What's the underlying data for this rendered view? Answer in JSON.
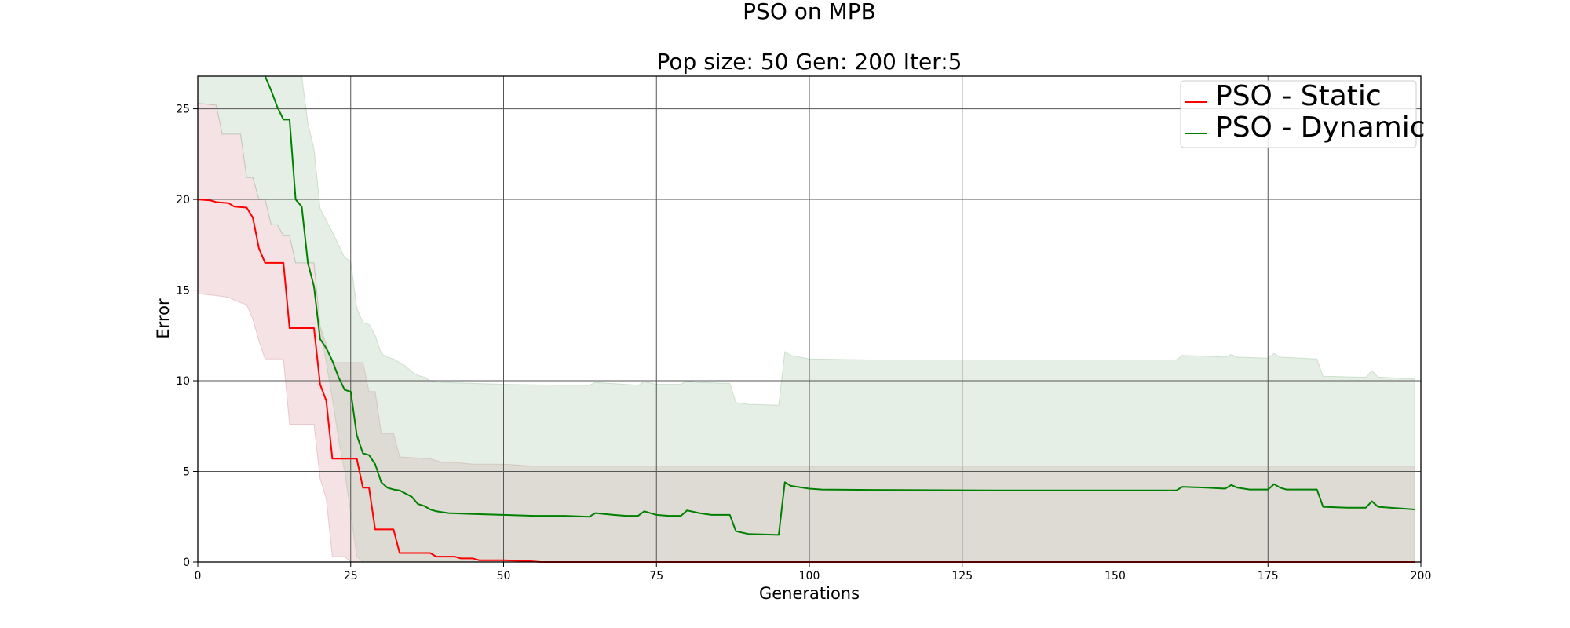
{
  "chart_data": {
    "type": "line",
    "title": "PSO on MPB",
    "subtitle": "Pop size: 50  Gen: 200  Iter:5",
    "xlabel": "Generations",
    "ylabel": "Error",
    "xlim": [
      0,
      200
    ],
    "ylim": [
      0,
      26.8
    ],
    "x_ticks": [
      0,
      25,
      50,
      75,
      100,
      125,
      150,
      175,
      200
    ],
    "y_ticks": [
      0,
      5,
      10,
      15,
      20,
      25
    ],
    "grid": true,
    "legend_position": "top-right",
    "series": [
      {
        "name": "PSO - Static",
        "color": "#ff0000",
        "band_color": "#d9a0a8",
        "mean": [
          [
            0,
            20.0
          ],
          [
            2,
            19.95
          ],
          [
            3,
            19.85
          ],
          [
            5,
            19.8
          ],
          [
            6,
            19.6
          ],
          [
            8,
            19.55
          ],
          [
            9,
            19.0
          ],
          [
            10,
            17.3
          ],
          [
            11,
            16.5
          ],
          [
            14,
            16.5
          ],
          [
            15,
            12.9
          ],
          [
            19,
            12.9
          ],
          [
            20,
            9.8
          ],
          [
            21,
            8.9
          ],
          [
            22,
            5.7
          ],
          [
            26,
            5.7
          ],
          [
            27,
            4.1
          ],
          [
            28,
            4.1
          ],
          [
            29,
            1.8
          ],
          [
            32,
            1.8
          ],
          [
            33,
            0.5
          ],
          [
            38,
            0.5
          ],
          [
            39,
            0.3
          ],
          [
            42,
            0.3
          ],
          [
            43,
            0.2
          ],
          [
            45,
            0.2
          ],
          [
            46,
            0.1
          ],
          [
            50,
            0.1
          ],
          [
            54,
            0.05
          ],
          [
            56,
            0.0
          ],
          [
            199,
            0.0
          ]
        ],
        "upper": [
          [
            0,
            25.3
          ],
          [
            3,
            25.2
          ],
          [
            4,
            23.6
          ],
          [
            7,
            23.6
          ],
          [
            8,
            21.2
          ],
          [
            9,
            21.2
          ],
          [
            10,
            20.0
          ],
          [
            11,
            20.0
          ],
          [
            12,
            18.6
          ],
          [
            13,
            18.6
          ],
          [
            14,
            18.0
          ],
          [
            15,
            18.0
          ],
          [
            16,
            16.5
          ],
          [
            19,
            16.5
          ],
          [
            20,
            13.0
          ],
          [
            22,
            11.0
          ],
          [
            27,
            11.0
          ],
          [
            28,
            9.4
          ],
          [
            29,
            9.4
          ],
          [
            30,
            7.1
          ],
          [
            32,
            7.1
          ],
          [
            33,
            5.8
          ],
          [
            38,
            5.7
          ],
          [
            40,
            5.5
          ],
          [
            42,
            5.5
          ],
          [
            45,
            5.4
          ],
          [
            50,
            5.4
          ],
          [
            55,
            5.3
          ],
          [
            199,
            5.3
          ]
        ],
        "lower": [
          [
            0,
            14.8
          ],
          [
            3,
            14.7
          ],
          [
            5,
            14.6
          ],
          [
            7,
            14.3
          ],
          [
            8,
            14.2
          ],
          [
            9,
            13.4
          ],
          [
            10,
            12.2
          ],
          [
            11,
            11.2
          ],
          [
            14,
            11.2
          ],
          [
            15,
            7.6
          ],
          [
            19,
            7.6
          ],
          [
            20,
            4.6
          ],
          [
            21,
            3.5
          ],
          [
            22,
            0.3
          ],
          [
            24,
            0.3
          ],
          [
            25,
            0.0
          ],
          [
            199,
            0.0
          ]
        ]
      },
      {
        "name": "PSO - Dynamic",
        "color": "#008000",
        "band_color": "#a8caa8",
        "mean": [
          [
            11,
            26.8
          ],
          [
            12,
            26.0
          ],
          [
            13,
            25.1
          ],
          [
            14,
            24.4
          ],
          [
            15,
            24.4
          ],
          [
            16,
            20.0
          ],
          [
            17,
            19.6
          ],
          [
            18,
            16.5
          ],
          [
            19,
            15.2
          ],
          [
            20,
            12.3
          ],
          [
            21,
            11.8
          ],
          [
            22,
            11.1
          ],
          [
            23,
            10.2
          ],
          [
            24,
            9.5
          ],
          [
            25,
            9.4
          ],
          [
            26,
            7.0
          ],
          [
            27,
            6.0
          ],
          [
            28,
            5.9
          ],
          [
            29,
            5.4
          ],
          [
            30,
            4.4
          ],
          [
            31,
            4.1
          ],
          [
            32,
            4.0
          ],
          [
            33,
            3.95
          ],
          [
            35,
            3.6
          ],
          [
            36,
            3.2
          ],
          [
            37,
            3.1
          ],
          [
            38,
            2.9
          ],
          [
            39,
            2.8
          ],
          [
            40,
            2.75
          ],
          [
            41,
            2.7
          ],
          [
            45,
            2.65
          ],
          [
            50,
            2.6
          ],
          [
            55,
            2.55
          ],
          [
            60,
            2.55
          ],
          [
            64,
            2.5
          ],
          [
            65,
            2.7
          ],
          [
            68,
            2.6
          ],
          [
            70,
            2.55
          ],
          [
            72,
            2.55
          ],
          [
            73,
            2.8
          ],
          [
            75,
            2.6
          ],
          [
            77,
            2.55
          ],
          [
            79,
            2.55
          ],
          [
            80,
            2.85
          ],
          [
            82,
            2.7
          ],
          [
            84,
            2.6
          ],
          [
            87,
            2.6
          ],
          [
            88,
            1.7
          ],
          [
            90,
            1.55
          ],
          [
            95,
            1.5
          ],
          [
            96,
            4.4
          ],
          [
            97,
            4.2
          ],
          [
            100,
            4.05
          ],
          [
            102,
            4.0
          ],
          [
            110,
            3.98
          ],
          [
            130,
            3.95
          ],
          [
            150,
            3.95
          ],
          [
            160,
            3.95
          ],
          [
            161,
            4.15
          ],
          [
            165,
            4.1
          ],
          [
            168,
            4.05
          ],
          [
            169,
            4.25
          ],
          [
            170,
            4.1
          ],
          [
            172,
            4.0
          ],
          [
            175,
            4.0
          ],
          [
            176,
            4.3
          ],
          [
            177,
            4.1
          ],
          [
            178,
            4.0
          ],
          [
            183,
            4.0
          ],
          [
            184,
            3.05
          ],
          [
            188,
            3.0
          ],
          [
            191,
            3.0
          ],
          [
            192,
            3.35
          ],
          [
            193,
            3.05
          ],
          [
            197,
            2.95
          ],
          [
            199,
            2.9
          ]
        ],
        "upper": [
          [
            0,
            26.8
          ],
          [
            17,
            26.8
          ],
          [
            18,
            24.2
          ],
          [
            19,
            22.8
          ],
          [
            20,
            19.5
          ],
          [
            22,
            18.2
          ],
          [
            23,
            17.5
          ],
          [
            24,
            16.8
          ],
          [
            25,
            16.6
          ],
          [
            26,
            14.0
          ],
          [
            27,
            13.2
          ],
          [
            28,
            13.1
          ],
          [
            29,
            12.5
          ],
          [
            30,
            11.5
          ],
          [
            31,
            11.3
          ],
          [
            32,
            11.2
          ],
          [
            34,
            10.8
          ],
          [
            35,
            10.5
          ],
          [
            36,
            10.3
          ],
          [
            37,
            10.2
          ],
          [
            38,
            10.0
          ],
          [
            40,
            9.9
          ],
          [
            50,
            9.8
          ],
          [
            60,
            9.75
          ],
          [
            64,
            9.75
          ],
          [
            65,
            9.9
          ],
          [
            70,
            9.8
          ],
          [
            72,
            9.75
          ],
          [
            73,
            9.95
          ],
          [
            75,
            9.8
          ],
          [
            79,
            9.8
          ],
          [
            80,
            10.0
          ],
          [
            82,
            9.9
          ],
          [
            87,
            9.85
          ],
          [
            88,
            8.8
          ],
          [
            90,
            8.7
          ],
          [
            95,
            8.65
          ],
          [
            96,
            11.6
          ],
          [
            97,
            11.4
          ],
          [
            100,
            11.2
          ],
          [
            110,
            11.15
          ],
          [
            150,
            11.15
          ],
          [
            160,
            11.15
          ],
          [
            161,
            11.4
          ],
          [
            165,
            11.35
          ],
          [
            168,
            11.3
          ],
          [
            169,
            11.45
          ],
          [
            170,
            11.3
          ],
          [
            175,
            11.25
          ],
          [
            176,
            11.5
          ],
          [
            177,
            11.3
          ],
          [
            183,
            11.2
          ],
          [
            184,
            10.25
          ],
          [
            190,
            10.2
          ],
          [
            191,
            10.2
          ],
          [
            192,
            10.55
          ],
          [
            193,
            10.2
          ],
          [
            199,
            10.1
          ]
        ],
        "lower": [
          [
            0,
            25.3
          ],
          [
            3,
            25.2
          ],
          [
            4,
            23.6
          ],
          [
            7,
            23.6
          ],
          [
            8,
            21.2
          ],
          [
            9,
            21.2
          ],
          [
            10,
            20.0
          ],
          [
            11,
            20.0
          ],
          [
            12,
            18.6
          ],
          [
            13,
            18.6
          ],
          [
            14,
            18.0
          ],
          [
            15,
            18.0
          ],
          [
            16,
            16.5
          ],
          [
            19,
            16.5
          ],
          [
            20,
            13.0
          ],
          [
            21,
            11.0
          ],
          [
            22,
            9.0
          ],
          [
            23,
            6.8
          ],
          [
            24,
            5.0
          ],
          [
            25,
            2.7
          ],
          [
            26,
            0.3
          ],
          [
            27,
            0.0
          ],
          [
            199,
            0.0
          ]
        ]
      }
    ]
  }
}
